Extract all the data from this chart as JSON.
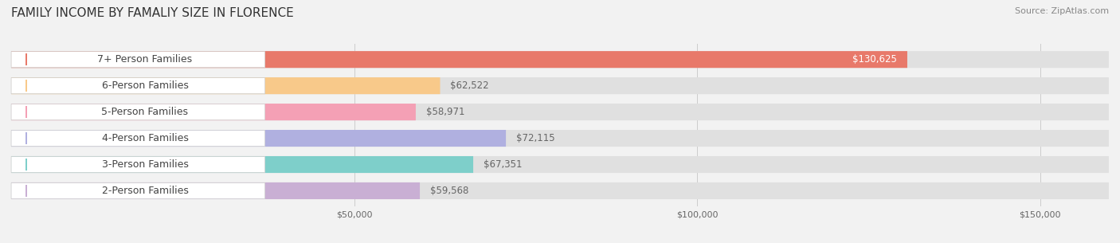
{
  "title": "FAMILY INCOME BY FAMALIY SIZE IN FLORENCE",
  "source": "Source: ZipAtlas.com",
  "categories": [
    "2-Person Families",
    "3-Person Families",
    "4-Person Families",
    "5-Person Families",
    "6-Person Families",
    "7+ Person Families"
  ],
  "values": [
    59568,
    67351,
    72115,
    58971,
    62522,
    130625
  ],
  "bar_colors": [
    "#c9afd4",
    "#7ecfca",
    "#b0b0e0",
    "#f4a0b5",
    "#f8c98a",
    "#e8796a"
  ],
  "label_colors": [
    "#c9afd4",
    "#7ecfca",
    "#b0b0e0",
    "#f4a0b5",
    "#f8c98a",
    "#e8796a"
  ],
  "bg_color": "#f2f2f2",
  "bar_bg_color": "#e8e8e8",
  "xlim": [
    0,
    160000
  ],
  "xticks": [
    0,
    50000,
    100000,
    150000
  ],
  "xtick_labels": [
    "$50,000",
    "$100,000",
    "$150,000"
  ],
  "value_labels": [
    "$59,568",
    "$67,351",
    "$72,115",
    "$58,971",
    "$62,522",
    "$130,625"
  ],
  "title_fontsize": 11,
  "label_fontsize": 9,
  "value_fontsize": 8.5,
  "source_fontsize": 8
}
